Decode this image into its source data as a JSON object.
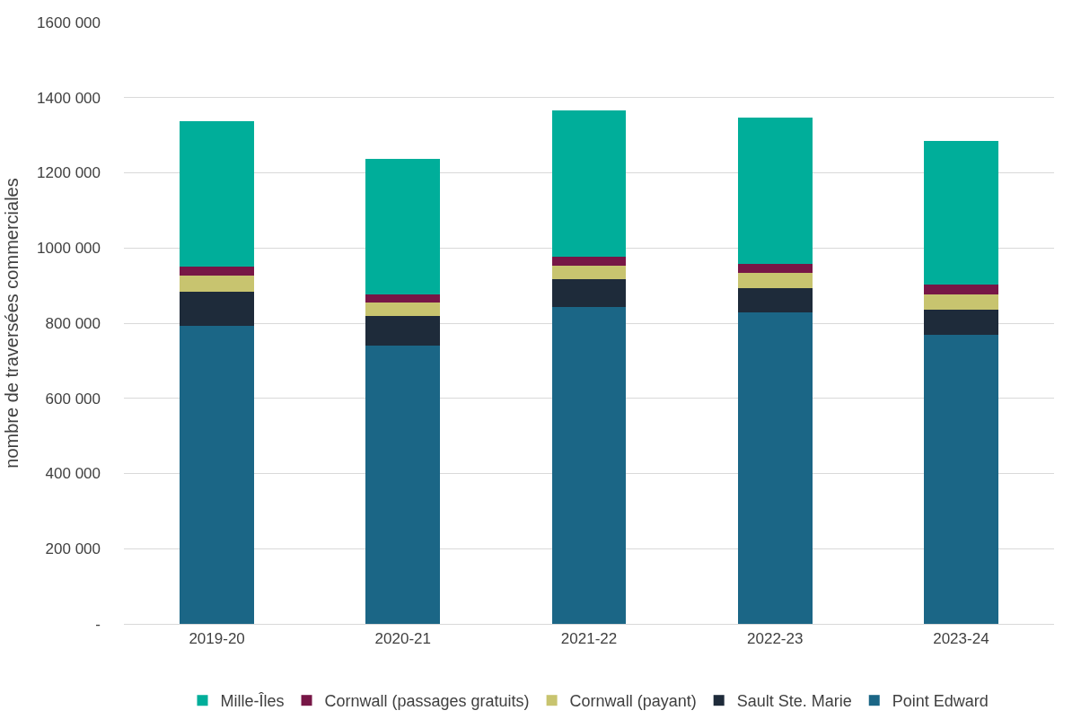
{
  "chart_data": {
    "type": "bar",
    "stacked": true,
    "ylabel": "nombre de traversées commerciales",
    "categories": [
      "2019-20",
      "2020-21",
      "2021-22",
      "2022-23",
      "2023-24"
    ],
    "series": [
      {
        "name": "Point Edward",
        "color": "#1b6686",
        "values": [
          793000,
          741000,
          843000,
          828000,
          768000
        ]
      },
      {
        "name": "Sault Ste. Marie",
        "color": "#1e2b3a",
        "values": [
          90000,
          78000,
          75000,
          66000,
          69000
        ]
      },
      {
        "name": "Cornwall (payant)",
        "color": "#c8c46f",
        "values": [
          44000,
          37000,
          36000,
          40000,
          40000
        ]
      },
      {
        "name": "Cornwall (passages gratuits)",
        "color": "#771646",
        "values": [
          23000,
          21000,
          23000,
          23000,
          25000
        ]
      },
      {
        "name": "Mille-Îles",
        "color": "#00ae9a",
        "values": [
          387000,
          361000,
          390000,
          390000,
          383000
        ]
      }
    ],
    "ylim": [
      0,
      1600000
    ],
    "yticks": [
      {
        "value": 0,
        "label": "-"
      },
      {
        "value": 200000,
        "label": "200 000"
      },
      {
        "value": 400000,
        "label": "400 000"
      },
      {
        "value": 600000,
        "label": "600 000"
      },
      {
        "value": 800000,
        "label": "800 000"
      },
      {
        "value": 1000000,
        "label": "1000 000"
      },
      {
        "value": 1200000,
        "label": "1200 000"
      },
      {
        "value": 1400000,
        "label": "1400 000"
      },
      {
        "value": 1600000,
        "label": "1600 000"
      }
    ],
    "grid": "y",
    "legend": "bottom"
  }
}
